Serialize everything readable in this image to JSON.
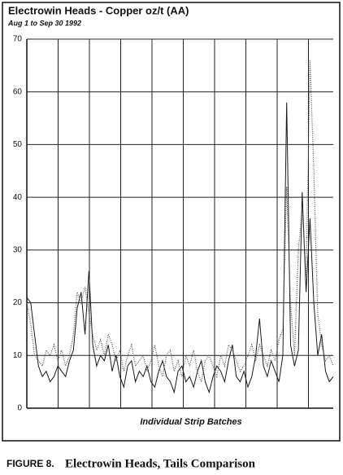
{
  "chart_data": {
    "type": "line",
    "title": "Electrowin Heads - Copper oz/t (AA)",
    "subtitle": "Aug 1 to Sep 30 1992",
    "x_label": "Individual Strip Batches",
    "categories": [
      null,
      null,
      null,
      null,
      null,
      null,
      null,
      null,
      null,
      null,
      null,
      null,
      null,
      null,
      null,
      null,
      null,
      null,
      null,
      null,
      null,
      null,
      null,
      null,
      null,
      null,
      null,
      null,
      null,
      null,
      null,
      null,
      null,
      null,
      null,
      null,
      null,
      null,
      null,
      null,
      null,
      null,
      null,
      null,
      null,
      null,
      null,
      null,
      null,
      null,
      null,
      null,
      null,
      null,
      null,
      null,
      null,
      null,
      null,
      null,
      null,
      null,
      null,
      null,
      null,
      null,
      null,
      null,
      null,
      null,
      null,
      null,
      null,
      null,
      null,
      null,
      null,
      null,
      null,
      null
    ],
    "series": [
      {
        "color": "#1a1a1a",
        "dash": false,
        "values": [
          21,
          20,
          14,
          8,
          6,
          7,
          5,
          6,
          8,
          7,
          6,
          9,
          11,
          19,
          22,
          14,
          26,
          12,
          8,
          10,
          9,
          12,
          7,
          10,
          6,
          4,
          8,
          9,
          5,
          7,
          6,
          8,
          5,
          4,
          7,
          9,
          6,
          5,
          3,
          7,
          8,
          5,
          6,
          4,
          7,
          9,
          5,
          3,
          6,
          8,
          7,
          5,
          9,
          12,
          6,
          5,
          7,
          4,
          6,
          10,
          17,
          8,
          6,
          9,
          7,
          5,
          10,
          58,
          12,
          8,
          11,
          41,
          22,
          36,
          20,
          10,
          14,
          7,
          5,
          6
        ]
      },
      {
        "color": "#555555",
        "dash": true,
        "values": [
          20,
          16,
          10,
          9,
          8,
          11,
          10,
          12,
          9,
          11,
          8,
          10,
          14,
          22,
          20,
          23,
          18,
          14,
          11,
          13,
          10,
          14,
          12,
          9,
          11,
          7,
          10,
          12,
          8,
          9,
          10,
          7,
          9,
          12,
          8,
          6,
          10,
          11,
          7,
          9,
          6,
          10,
          8,
          11,
          7,
          5,
          9,
          10,
          8,
          6,
          10,
          8,
          12,
          11,
          9,
          7,
          8,
          10,
          12,
          9,
          12,
          10,
          8,
          11,
          9,
          13,
          15,
          42,
          20,
          10,
          30,
          38,
          25,
          66,
          45,
          18,
          12,
          9,
          10,
          8
        ]
      }
    ],
    "ylim": [
      0,
      70
    ],
    "yticks": [
      0,
      10,
      20,
      30,
      40,
      50,
      60,
      70
    ],
    "grid": true
  },
  "figure": {
    "label": "FIGURE 8.",
    "title": "Electrowin Heads, Tails Comparison"
  }
}
